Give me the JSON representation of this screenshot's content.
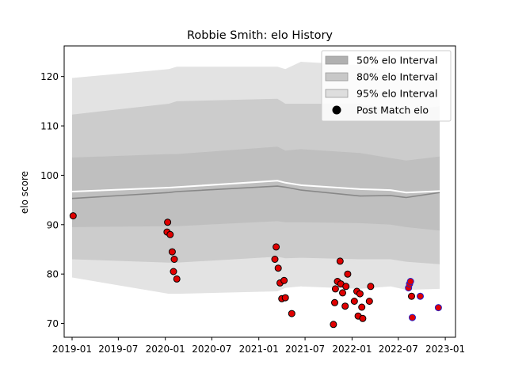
{
  "chart_data": {
    "type": "scatter",
    "title": "Robbie Smith: elo History",
    "xlabel": "",
    "ylabel": "elo score",
    "x_ticks": [
      "2019-01",
      "2019-07",
      "2020-01",
      "2020-07",
      "2021-01",
      "2021-07",
      "2022-01",
      "2022-07",
      "2023-01"
    ],
    "y_ticks": [
      "70",
      "80",
      "90",
      "100",
      "110",
      "120"
    ],
    "xlim": [
      "2018-12-01",
      "2023-02-10"
    ],
    "ylim": [
      67.2,
      126.2
    ],
    "grid": false,
    "legend_position": "top-right",
    "legend": [
      {
        "label": "50% elo Interval",
        "kind": "band50"
      },
      {
        "label": "80% elo Interval",
        "kind": "band80"
      },
      {
        "label": "95% elo Interval",
        "kind": "band95"
      },
      {
        "label": "Post Match elo",
        "kind": "marker"
      }
    ],
    "colors": {
      "band95": "#e3e3e3",
      "band80": "#cccccc",
      "band50": "#bfbfbf",
      "mean_line": "#ffffff",
      "median_line": "#888888",
      "point_fill": "#e00000",
      "point_edge_default": "#000000",
      "point_edge_recent": "#1f1fcc",
      "legend_marker": "#000000"
    },
    "band": [
      {
        "x": "2019-01-01",
        "lo95": 79.3,
        "lo80": 83.0,
        "lo50": 89.5,
        "hi50": 103.6,
        "hi80": 112.3,
        "hi95": 119.7,
        "mean": 96.7,
        "median": 95.3
      },
      {
        "x": "2020-01-15",
        "lo95": 76.0,
        "lo80": 82.3,
        "lo50": 89.7,
        "hi50": 104.3,
        "hi80": 114.5,
        "hi95": 121.5,
        "mean": 97.5,
        "median": 96.5
      },
      {
        "x": "2020-02-15",
        "lo95": 76.0,
        "lo80": 82.3,
        "lo50": 89.7,
        "hi50": 104.3,
        "hi80": 115.0,
        "hi95": 122.0,
        "mean": 97.6,
        "median": 96.7
      },
      {
        "x": "2021-03-15",
        "lo95": 76.5,
        "lo80": 83.5,
        "lo50": 90.7,
        "hi50": 105.8,
        "hi80": 115.5,
        "hi95": 122.0,
        "mean": 98.9,
        "median": 97.8
      },
      {
        "x": "2021-04-15",
        "lo95": 77.2,
        "lo80": 83.2,
        "lo50": 90.5,
        "hi50": 105.0,
        "hi80": 114.5,
        "hi95": 121.5,
        "mean": 98.5,
        "median": 97.6
      },
      {
        "x": "2021-06-15",
        "lo95": 77.5,
        "lo80": 83.3,
        "lo50": 90.5,
        "hi50": 105.3,
        "hi80": 114.5,
        "hi95": 123.0,
        "mean": 98.0,
        "median": 97.0
      },
      {
        "x": "2022-02-01",
        "lo95": 77.0,
        "lo80": 83.0,
        "lo50": 90.3,
        "hi50": 104.5,
        "hi80": 114.5,
        "hi95": 122.3,
        "mean": 97.2,
        "median": 95.8
      },
      {
        "x": "2022-06-01",
        "lo95": 77.5,
        "lo80": 83.0,
        "lo50": 90.0,
        "hi50": 103.5,
        "hi80": 113.5,
        "hi95": 121.0,
        "mean": 97.0,
        "median": 95.9
      },
      {
        "x": "2022-08-01",
        "lo95": 76.8,
        "lo80": 82.5,
        "lo50": 89.5,
        "hi50": 103.0,
        "hi80": 113.0,
        "hi95": 120.5,
        "mean": 96.5,
        "median": 95.5
      },
      {
        "x": "2022-12-10",
        "lo95": 77.0,
        "lo80": 82.0,
        "lo50": 88.8,
        "hi50": 103.8,
        "hi80": 114.0,
        "hi95": 121.0,
        "mean": 96.8,
        "median": 96.5
      }
    ],
    "points": [
      {
        "x": "2019-01-05",
        "y": 91.8
      },
      {
        "x": "2020-01-10",
        "y": 90.5
      },
      {
        "x": "2020-01-08",
        "y": 88.5
      },
      {
        "x": "2020-01-20",
        "y": 88.0
      },
      {
        "x": "2020-01-28",
        "y": 84.5
      },
      {
        "x": "2020-02-05",
        "y": 83.0
      },
      {
        "x": "2020-02-02",
        "y": 80.5
      },
      {
        "x": "2020-02-15",
        "y": 79.0
      },
      {
        "x": "2021-03-10",
        "y": 85.5
      },
      {
        "x": "2021-03-05",
        "y": 83.0
      },
      {
        "x": "2021-03-18",
        "y": 81.2
      },
      {
        "x": "2021-03-25",
        "y": 78.2
      },
      {
        "x": "2021-04-10",
        "y": 78.7
      },
      {
        "x": "2021-04-01",
        "y": 75.0
      },
      {
        "x": "2021-04-15",
        "y": 75.2
      },
      {
        "x": "2021-05-10",
        "y": 72.0
      },
      {
        "x": "2021-10-20",
        "y": 69.8
      },
      {
        "x": "2021-10-25",
        "y": 74.2
      },
      {
        "x": "2021-10-28",
        "y": 77.0
      },
      {
        "x": "2021-11-05",
        "y": 78.5
      },
      {
        "x": "2021-11-15",
        "y": 82.6
      },
      {
        "x": "2021-11-18",
        "y": 78.0
      },
      {
        "x": "2021-11-25",
        "y": 76.2
      },
      {
        "x": "2021-12-05",
        "y": 73.5
      },
      {
        "x": "2021-12-08",
        "y": 77.5
      },
      {
        "x": "2021-12-15",
        "y": 80.0
      },
      {
        "x": "2022-01-10",
        "y": 74.5
      },
      {
        "x": "2022-01-20",
        "y": 76.5
      },
      {
        "x": "2022-01-25",
        "y": 71.5
      },
      {
        "x": "2022-02-01",
        "y": 76.0
      },
      {
        "x": "2022-02-08",
        "y": 73.3
      },
      {
        "x": "2022-02-12",
        "y": 71.0
      },
      {
        "x": "2022-03-10",
        "y": 74.5
      },
      {
        "x": "2022-03-15",
        "y": 77.5
      },
      {
        "x": "2022-08-10",
        "y": 77.2,
        "recent": true
      },
      {
        "x": "2022-08-14",
        "y": 78.0,
        "recent": true
      },
      {
        "x": "2022-08-18",
        "y": 78.5,
        "recent": true
      },
      {
        "x": "2022-08-22",
        "y": 75.5
      },
      {
        "x": "2022-08-25",
        "y": 71.2,
        "recent": true
      },
      {
        "x": "2022-09-25",
        "y": 75.5,
        "recent": true
      },
      {
        "x": "2022-12-05",
        "y": 73.2,
        "recent": true
      }
    ]
  }
}
